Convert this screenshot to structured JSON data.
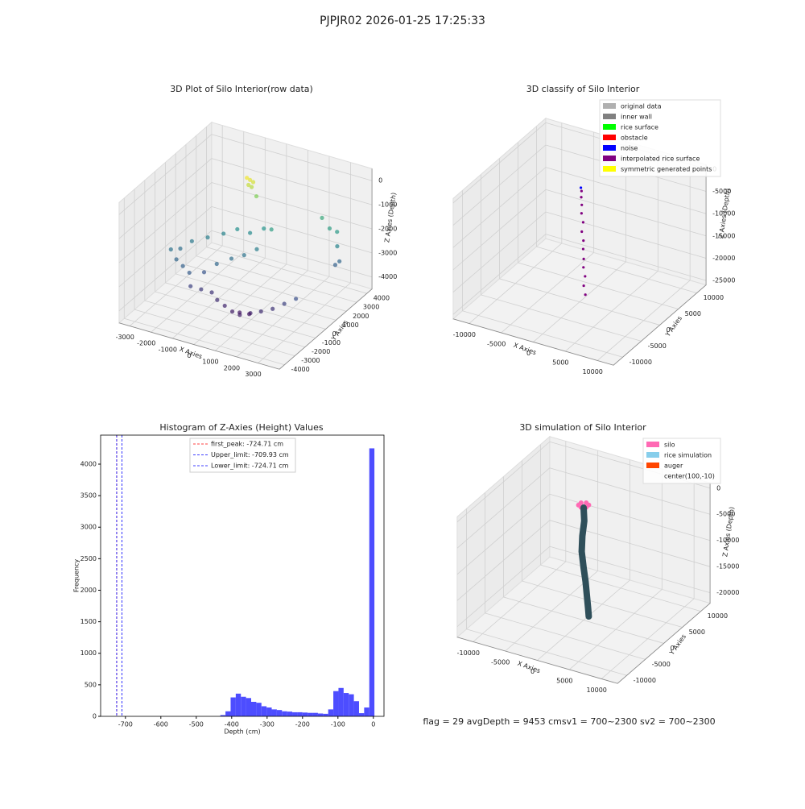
{
  "title": "PJPJR02 2026-01-25 17:25:33",
  "footer": "flag = 29  avgDepth = 9453 cmsv1 = 700~2300  sv2 = 700~2300",
  "chart_data": [
    {
      "type": "scatter3d",
      "title": "3D Plot of Silo Interior(row data)",
      "xlabel": "X Axies",
      "ylabel": "Y Axies",
      "zlabel": "Z Axies (Depth)",
      "xlim": [
        -3500,
        4000
      ],
      "ylim": [
        -4500,
        4500
      ],
      "zlim": [
        -4500,
        500
      ],
      "xticks": [
        -3000,
        -2000,
        -1000,
        0,
        1000,
        2000,
        3000
      ],
      "yticks": [
        -4000,
        -3000,
        -2000,
        -1000,
        0,
        1000,
        2000,
        3000,
        4000
      ],
      "zticks": [
        0,
        -1000,
        -2000,
        -3000,
        -4000
      ],
      "x": [
        -500,
        -400,
        -600,
        -450,
        -550,
        -300,
        2500,
        2800,
        3000,
        3200,
        3100,
        2000,
        -3000,
        -2800,
        -2500,
        -2000,
        -1500,
        -1000,
        -500,
        0,
        500,
        -2600,
        -2200,
        -1800,
        -1400,
        -1000,
        -600,
        -200,
        200,
        -1600,
        -1200,
        -800,
        -400,
        0,
        400,
        800,
        1200,
        1600,
        2000,
        2400,
        2800,
        1000,
        600
      ],
      "y": [
        2000,
        2100,
        1900,
        2050,
        1950,
        2200,
        3500,
        3600,
        3200,
        3000,
        2800,
        3800,
        -500,
        0,
        500,
        1000,
        1500,
        1800,
        2000,
        2300,
        2000,
        -800,
        -1000,
        -1200,
        -600,
        -200,
        400,
        800,
        1200,
        -1500,
        -1300,
        -1100,
        -1400,
        -1500,
        -1600,
        -1700,
        -1500,
        -1300,
        -1000,
        -700,
        -400,
        -1200,
        -1300
      ],
      "z": [
        -200,
        -300,
        -100,
        -500,
        -400,
        -900,
        -2000,
        -2100,
        -2500,
        -3000,
        -3100,
        -1800,
        -2800,
        -2900,
        -2700,
        -2600,
        -2500,
        -2300,
        -2400,
        -2200,
        -2000,
        -3000,
        -3100,
        -3200,
        -3300,
        -3000,
        -2900,
        -2800,
        -2600,
        -3600,
        -3700,
        -3800,
        -3900,
        -4000,
        -4100,
        -4100,
        -4000,
        -3900,
        -3800,
        -3600,
        -3400,
        -4200,
        -4200
      ]
    },
    {
      "type": "scatter3d",
      "title": "3D classify of Silo Interior",
      "xlabel": "X Axies",
      "ylabel": "Y Axies",
      "zlabel": "Z Axies (Depth)",
      "xlim": [
        -12500,
        12500
      ],
      "ylim": [
        -12500,
        12500
      ],
      "zlim": [
        -26000,
        1000
      ],
      "xticks": [
        -10000,
        -5000,
        0,
        5000,
        10000
      ],
      "yticks": [
        -10000,
        -5000,
        0,
        5000,
        10000
      ],
      "zticks": [
        0,
        -5000,
        -10000,
        -15000,
        -20000,
        -25000
      ],
      "legend": "upper right",
      "series": [
        {
          "name": "original data",
          "color": "#b0b0b0",
          "x": [],
          "y": [],
          "z": []
        },
        {
          "name": "inner wall",
          "color": "#808080",
          "x": [],
          "y": [],
          "z": []
        },
        {
          "name": "rice surface",
          "color": "#00ff00",
          "x": [],
          "y": [],
          "z": []
        },
        {
          "name": "obstacle",
          "color": "#ff0000",
          "x": [],
          "y": [],
          "z": []
        },
        {
          "name": "noise",
          "color": "#0000ff",
          "x": [
            200
          ],
          "y": [
            0
          ],
          "z": [
            -300
          ]
        },
        {
          "name": "interpolated rice surface",
          "color": "#800080",
          "x": [
            300,
            200,
            400,
            300,
            500,
            400,
            600,
            500,
            700,
            600,
            800,
            700,
            900
          ],
          "y": [
            0,
            100,
            -100,
            0,
            100,
            -100,
            0,
            100,
            -100,
            0,
            100,
            -100,
            0
          ],
          "z": [
            -1000,
            -2500,
            -4000,
            -6000,
            -8000,
            -10000,
            -12000,
            -14000,
            -16000,
            -18000,
            -20000,
            -22000,
            -24000
          ]
        },
        {
          "name": "symmetric generated points",
          "color": "#ffff00",
          "x": [],
          "y": [],
          "z": []
        }
      ]
    },
    {
      "type": "histogram",
      "title": "Histogram of Z-Axies (Height) Values",
      "xlabel": "Depth (cm)",
      "ylabel": "Frequency",
      "color": "#4d4dff",
      "xlim": [
        -770,
        30
      ],
      "ylim": [
        0,
        4460
      ],
      "xticks": [
        -700,
        -600,
        -500,
        -400,
        -300,
        -200,
        -100,
        0
      ],
      "yticks": [
        0,
        500,
        1000,
        1500,
        2000,
        2500,
        3000,
        3500,
        4000
      ],
      "bins": [
        -432,
        -417.5,
        -403,
        -388.5,
        -374,
        -359.5,
        -345,
        -330.5,
        -316,
        -301.5,
        -287,
        -272.5,
        -258,
        -243.5,
        -229,
        -214.5,
        -200,
        -185.5,
        -171,
        -156.5,
        -142,
        -127.5,
        -113,
        -98.5,
        -84,
        -69.5,
        -55,
        -40.5,
        -26,
        -11.5,
        3
      ],
      "counts": [
        20,
        80,
        300,
        360,
        310,
        290,
        230,
        215,
        160,
        140,
        110,
        100,
        80,
        75,
        65,
        65,
        60,
        55,
        55,
        45,
        40,
        110,
        400,
        450,
        370,
        350,
        240,
        50,
        140,
        4250
      ],
      "legend": "upper center",
      "vlines": [
        {
          "value": -724.71,
          "label": "first_peak: -724.71 cm",
          "color": "#ff0000"
        },
        {
          "value": -709.93,
          "label": "Upper_limit: -709.93 cm",
          "color": "#0000ff"
        },
        {
          "value": -724.71,
          "label": "Lower_limit: -724.71 cm",
          "color": "#0000ff"
        }
      ]
    },
    {
      "type": "surface3d",
      "title": "3D simulation of Silo Interior",
      "xlabel": "X Axies",
      "ylabel": "Y Axies",
      "zlabel": "Z Axies (Depth)",
      "xlim": [
        -12500,
        12500
      ],
      "ylim": [
        -12500,
        12500
      ],
      "zlim": [
        -22000,
        1000
      ],
      "xticks": [
        -10000,
        -5000,
        0,
        5000,
        10000
      ],
      "yticks": [
        -10000,
        -5000,
        0,
        5000,
        10000
      ],
      "zticks": [
        0,
        -5000,
        -10000,
        -15000,
        -20000
      ],
      "legend": "upper right",
      "surface_color": "#2f4f5a",
      "series": [
        {
          "name": "silo",
          "color": "#ff69b4",
          "x": [
            0,
            600,
            600,
            0,
            -600,
            -600
          ],
          "y": [
            700,
            350,
            -350,
            -700,
            -350,
            350
          ],
          "z": [
            0,
            0,
            0,
            0,
            0,
            0
          ]
        },
        {
          "name": "rice simulation",
          "color": "#87ceeb",
          "x": [
            0,
            100,
            -200,
            -300,
            0,
            300,
            500,
            700,
            800
          ],
          "y": [
            0,
            0,
            0,
            0,
            0,
            0,
            0,
            0,
            0
          ],
          "z": [
            -500,
            -3000,
            -6000,
            -9000,
            -12000,
            -14500,
            -17000,
            -19500,
            -21000
          ]
        },
        {
          "name": "auger",
          "color": "#ff4500",
          "x": [],
          "y": [],
          "z": []
        },
        {
          "name": "center(100,-10)",
          "color": null,
          "x": [],
          "y": [],
          "z": []
        }
      ]
    }
  ]
}
